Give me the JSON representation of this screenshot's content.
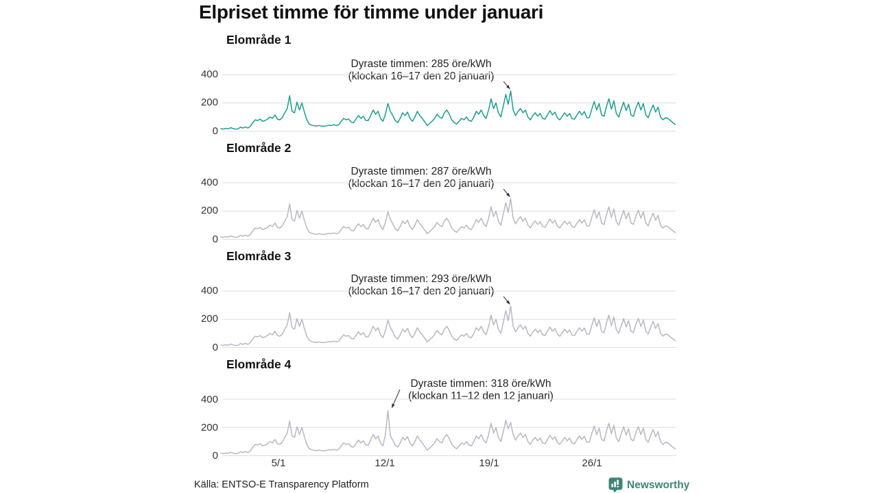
{
  "page": {
    "title": "Elpriset timme för timme under januari",
    "source": "Källa: ENTSO-E Transparency Platform",
    "brand": "Newsworthy"
  },
  "colors": {
    "accent_teal": "#1a9c8b",
    "muted_line": "#b7b7c2",
    "grid": "#dcdcdc",
    "brand_teal": "#3d8578",
    "text": "#1a1a1a"
  },
  "axes": {
    "yticks": [
      "400",
      "200",
      "0"
    ],
    "xticks": [
      "5/1",
      "12/1",
      "19/1",
      "26/1"
    ],
    "x_range_days": [
      1,
      31
    ],
    "y_unit": "öre/kWh",
    "sample_interval_hours": 4
  },
  "chart_data": [
    {
      "type": "line",
      "title": "Elområde 1",
      "annotation_line1": "Dyraste timmen: 285 öre/kWh",
      "annotation_line2": "(klockan 16–17 den 20 januari)",
      "max_value": 285,
      "max_time": "klockan 16–17 den 20 januari",
      "color": "#1a9c8b",
      "ylim": [
        0,
        450
      ],
      "values": [
        18,
        14,
        20,
        16,
        24,
        18,
        14,
        16,
        28,
        22,
        30,
        22,
        35,
        60,
        80,
        75,
        85,
        70,
        75,
        85,
        100,
        90,
        115,
        85,
        80,
        95,
        130,
        160,
        250,
        140,
        130,
        205,
        150,
        200,
        135,
        80,
        50,
        42,
        38,
        36,
        40,
        35,
        35,
        38,
        42,
        40,
        45,
        40,
        45,
        70,
        90,
        80,
        85,
        65,
        60,
        85,
        110,
        90,
        105,
        75,
        75,
        110,
        150,
        120,
        140,
        90,
        70,
        120,
        195,
        140,
        110,
        75,
        60,
        90,
        130,
        110,
        135,
        90,
        70,
        100,
        140,
        110,
        90,
        65,
        40,
        55,
        70,
        90,
        120,
        100,
        90,
        130,
        150,
        120,
        80,
        60,
        50,
        70,
        90,
        80,
        100,
        75,
        70,
        100,
        140,
        120,
        150,
        110,
        90,
        150,
        230,
        160,
        200,
        130,
        100,
        180,
        260,
        190,
        285,
        150,
        110,
        140,
        160,
        130,
        150,
        100,
        80,
        110,
        130,
        105,
        125,
        90,
        85,
        115,
        145,
        115,
        135,
        95,
        80,
        105,
        130,
        105,
        125,
        88,
        85,
        115,
        140,
        115,
        138,
        95,
        95,
        155,
        210,
        150,
        195,
        115,
        105,
        175,
        230,
        155,
        215,
        125,
        100,
        155,
        205,
        145,
        190,
        115,
        105,
        165,
        205,
        150,
        195,
        115,
        95,
        145,
        185,
        135,
        170,
        100,
        80,
        95,
        90,
        75,
        60,
        48
      ]
    },
    {
      "type": "line",
      "title": "Elområde 2",
      "annotation_line1": "Dyraste timmen: 287 öre/kWh",
      "annotation_line2": "(klockan 16–17 den 20 januari)",
      "max_value": 287,
      "max_time": "klockan 16–17 den 20 januari",
      "color": "#b7b7c2",
      "ylim": [
        0,
        450
      ],
      "values": [
        18,
        14,
        20,
        16,
        24,
        18,
        14,
        16,
        28,
        22,
        30,
        22,
        35,
        60,
        80,
        75,
        85,
        70,
        75,
        85,
        100,
        90,
        115,
        85,
        80,
        95,
        130,
        160,
        250,
        140,
        130,
        205,
        150,
        200,
        135,
        80,
        50,
        42,
        38,
        36,
        40,
        35,
        35,
        38,
        42,
        40,
        45,
        40,
        45,
        70,
        90,
        80,
        85,
        65,
        60,
        85,
        110,
        90,
        105,
        75,
        75,
        110,
        150,
        120,
        140,
        90,
        70,
        120,
        195,
        140,
        110,
        75,
        60,
        90,
        130,
        110,
        135,
        90,
        70,
        100,
        140,
        110,
        90,
        65,
        40,
        55,
        70,
        90,
        120,
        100,
        90,
        130,
        150,
        120,
        80,
        60,
        50,
        70,
        90,
        80,
        100,
        75,
        70,
        100,
        140,
        120,
        150,
        110,
        90,
        150,
        230,
        160,
        200,
        130,
        100,
        180,
        260,
        190,
        287,
        150,
        110,
        140,
        160,
        130,
        150,
        100,
        80,
        110,
        130,
        105,
        125,
        90,
        85,
        115,
        145,
        115,
        135,
        95,
        80,
        105,
        130,
        105,
        125,
        88,
        85,
        115,
        140,
        115,
        138,
        95,
        95,
        155,
        210,
        150,
        195,
        115,
        105,
        175,
        230,
        155,
        215,
        125,
        100,
        155,
        205,
        145,
        190,
        115,
        105,
        165,
        205,
        150,
        195,
        115,
        95,
        145,
        185,
        135,
        170,
        100,
        80,
        95,
        90,
        75,
        60,
        48
      ]
    },
    {
      "type": "line",
      "title": "Elområde 3",
      "annotation_line1": "Dyraste timmen: 293 öre/kWh",
      "annotation_line2": "(klockan 16–17 den 20 januari)",
      "max_value": 293,
      "max_time": "klockan 16–17 den 20 januari",
      "color": "#b7b7c2",
      "ylim": [
        0,
        450
      ],
      "values": [
        18,
        14,
        20,
        16,
        24,
        18,
        14,
        16,
        28,
        22,
        30,
        22,
        35,
        60,
        80,
        75,
        85,
        70,
        75,
        85,
        100,
        90,
        115,
        85,
        80,
        95,
        130,
        160,
        245,
        140,
        130,
        205,
        150,
        200,
        135,
        80,
        50,
        42,
        38,
        36,
        40,
        35,
        35,
        38,
        42,
        40,
        45,
        40,
        45,
        70,
        90,
        80,
        85,
        65,
        60,
        85,
        110,
        90,
        105,
        75,
        75,
        110,
        150,
        120,
        140,
        90,
        70,
        120,
        195,
        140,
        110,
        75,
        60,
        90,
        130,
        110,
        135,
        90,
        70,
        100,
        140,
        110,
        90,
        65,
        40,
        55,
        70,
        90,
        120,
        100,
        90,
        130,
        150,
        120,
        80,
        60,
        50,
        70,
        90,
        80,
        100,
        75,
        70,
        100,
        140,
        120,
        150,
        110,
        90,
        150,
        230,
        160,
        200,
        130,
        100,
        180,
        260,
        190,
        293,
        150,
        110,
        140,
        160,
        130,
        150,
        100,
        80,
        110,
        130,
        105,
        125,
        90,
        85,
        115,
        145,
        115,
        135,
        95,
        80,
        105,
        130,
        105,
        125,
        88,
        85,
        115,
        140,
        115,
        138,
        95,
        95,
        155,
        210,
        150,
        195,
        115,
        105,
        175,
        230,
        155,
        215,
        125,
        100,
        155,
        205,
        145,
        190,
        115,
        105,
        165,
        205,
        150,
        195,
        115,
        95,
        145,
        185,
        135,
        170,
        100,
        80,
        95,
        90,
        75,
        60,
        48
      ]
    },
    {
      "type": "line",
      "title": "Elområde 4",
      "annotation_line1": "Dyraste timmen: 318 öre/kWh",
      "annotation_line2": "(klockan 11–12 den 12 januari)",
      "max_value": 318,
      "max_time": "klockan 11–12 den 12 januari",
      "color": "#b7b7c2",
      "ylim": [
        0,
        450
      ],
      "values": [
        18,
        14,
        20,
        16,
        24,
        18,
        14,
        16,
        28,
        22,
        30,
        22,
        35,
        60,
        80,
        75,
        85,
        70,
        75,
        85,
        100,
        90,
        115,
        85,
        80,
        95,
        130,
        160,
        245,
        140,
        130,
        205,
        150,
        200,
        135,
        80,
        50,
        42,
        38,
        36,
        40,
        35,
        35,
        38,
        42,
        40,
        45,
        40,
        45,
        70,
        90,
        80,
        85,
        65,
        60,
        85,
        110,
        90,
        105,
        75,
        75,
        110,
        150,
        120,
        140,
        90,
        70,
        150,
        318,
        140,
        110,
        75,
        60,
        90,
        130,
        110,
        135,
        90,
        70,
        100,
        140,
        110,
        90,
        65,
        40,
        55,
        70,
        90,
        120,
        100,
        90,
        130,
        150,
        120,
        80,
        60,
        50,
        70,
        90,
        80,
        100,
        75,
        70,
        100,
        140,
        120,
        150,
        110,
        90,
        150,
        230,
        160,
        200,
        130,
        100,
        170,
        250,
        190,
        235,
        150,
        110,
        140,
        160,
        130,
        150,
        100,
        80,
        110,
        130,
        105,
        125,
        90,
        85,
        115,
        145,
        115,
        135,
        95,
        80,
        105,
        130,
        105,
        125,
        88,
        85,
        115,
        140,
        115,
        138,
        95,
        95,
        155,
        210,
        150,
        195,
        115,
        105,
        175,
        230,
        155,
        215,
        125,
        100,
        155,
        205,
        145,
        190,
        115,
        105,
        165,
        205,
        150,
        195,
        115,
        95,
        145,
        185,
        135,
        170,
        100,
        80,
        95,
        90,
        75,
        60,
        48
      ]
    }
  ]
}
